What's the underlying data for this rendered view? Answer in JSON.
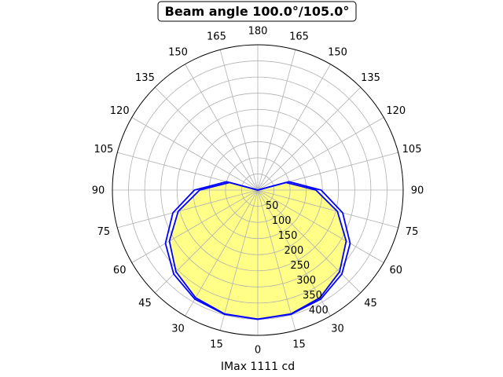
{
  "chart_data": {
    "type": "polar",
    "title": "Beam angle 100.0°/105.0°",
    "xlabel": "IMax 1111 cd",
    "angle_tick_labels": [
      "0",
      "15",
      "30",
      "45",
      "60",
      "75",
      "90",
      "105",
      "120",
      "135",
      "150",
      "165",
      "180",
      "165",
      "150",
      "135",
      "120",
      "105",
      "90",
      "75",
      "60",
      "45",
      "30",
      "15"
    ],
    "angle_ticks_deg": [
      0,
      15,
      30,
      45,
      60,
      75,
      90,
      105,
      120,
      135,
      150,
      165,
      180,
      195,
      210,
      225,
      240,
      255,
      270,
      285,
      300,
      315,
      330,
      345
    ],
    "radial_tick_labels": [
      "50",
      "100",
      "150",
      "200",
      "250",
      "300",
      "350",
      "400"
    ],
    "radial_ticks": [
      50,
      100,
      150,
      200,
      250,
      300,
      350,
      400
    ],
    "rlim": [
      0,
      450
    ],
    "grid": true,
    "series": [
      {
        "color": "#0000ff",
        "fill": "#ffff88",
        "angles_deg": [
          0,
          15,
          30,
          45,
          60,
          75,
          90,
          105,
          120,
          135,
          150,
          165,
          180,
          195,
          210,
          225,
          240,
          255,
          270,
          285,
          300,
          315,
          330,
          345,
          360
        ],
        "values": [
          400,
          397,
          385,
          358,
          316,
          255,
          180,
          90,
          0,
          0,
          0,
          0,
          0,
          0,
          0,
          0,
          0,
          90,
          180,
          255,
          316,
          358,
          385,
          397,
          400
        ]
      },
      {
        "color": "#0000ff",
        "fill": "none",
        "angles_deg": [
          0,
          15,
          30,
          45,
          60,
          75,
          90,
          105,
          120,
          135,
          150,
          165,
          180,
          195,
          210,
          225,
          240,
          255,
          270,
          285,
          300,
          315,
          330,
          345,
          360
        ],
        "values": [
          400,
          398,
          390,
          368,
          330,
          272,
          196,
          100,
          0,
          0,
          0,
          0,
          0,
          0,
          0,
          0,
          0,
          100,
          196,
          272,
          330,
          368,
          390,
          398,
          400
        ]
      }
    ]
  }
}
